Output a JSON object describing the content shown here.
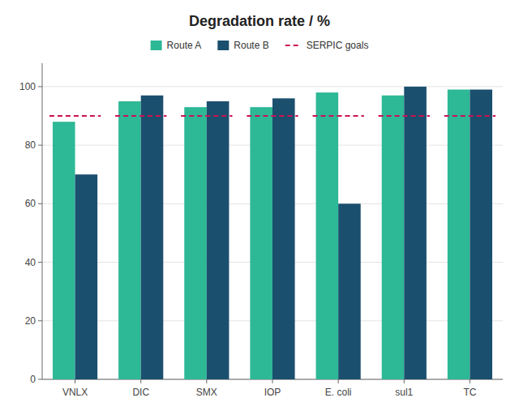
{
  "chart_data": {
    "type": "bar",
    "title": "Degradation rate / %",
    "categories": [
      "VNLX",
      "DIC",
      "SMX",
      "IOP",
      "E. coli",
      "sul1",
      "TC"
    ],
    "series": [
      {
        "name": "Route A",
        "color": "#2db896",
        "values": [
          88,
          95,
          93,
          93,
          98,
          97,
          99
        ]
      },
      {
        "name": "Route B",
        "color": "#1b4f6e",
        "values": [
          70,
          97,
          95,
          96,
          60,
          100,
          99
        ]
      },
      {
        "name": "SERPIC goals",
        "type": "line",
        "line_style": "dashed",
        "color": "#cc1155",
        "values": [
          90,
          90,
          90,
          90,
          90,
          90,
          90
        ]
      }
    ],
    "ylim": [
      0,
      108
    ],
    "yticks": [
      0,
      20,
      40,
      60,
      80,
      100
    ],
    "grid": true,
    "legend": "top"
  }
}
